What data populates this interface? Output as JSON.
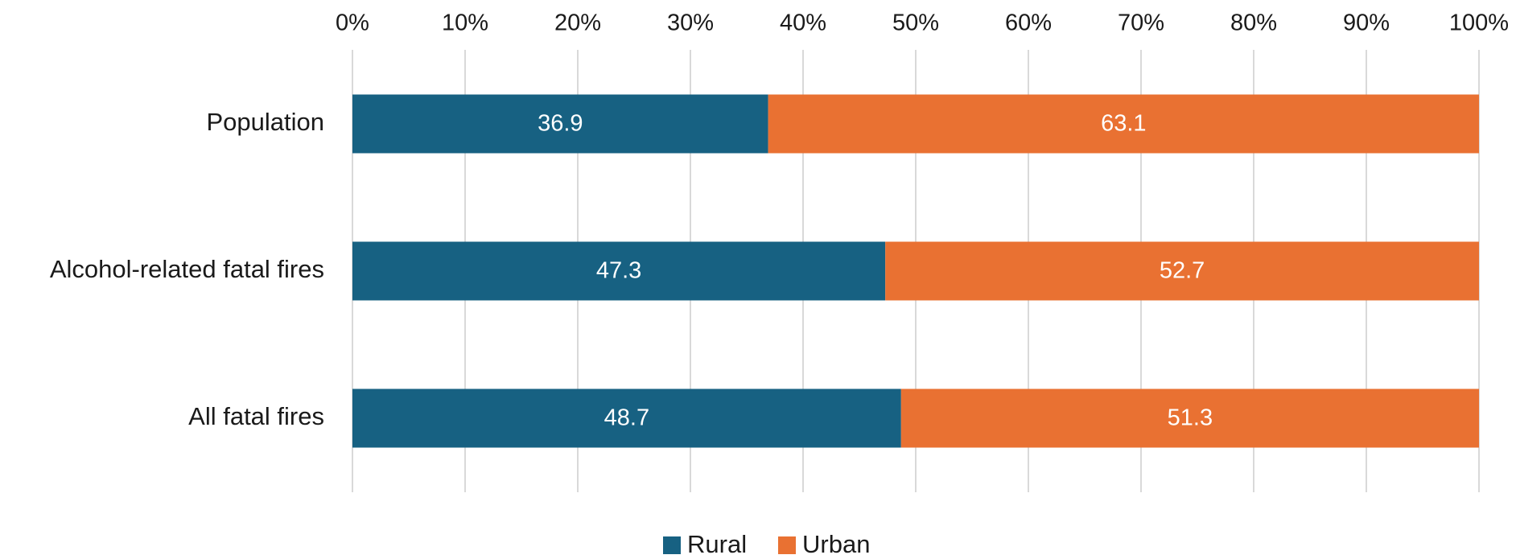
{
  "chart_data": {
    "type": "bar",
    "orientation": "horizontal",
    "stacked": true,
    "categories": [
      "Population",
      "Alcohol-related fatal fires",
      "All fatal fires"
    ],
    "series": [
      {
        "name": "Rural",
        "values": [
          36.9,
          47.3,
          48.7
        ],
        "color": "#176182"
      },
      {
        "name": "Urban",
        "values": [
          63.1,
          52.7,
          51.3
        ],
        "color": "#E97132"
      }
    ],
    "x_ticks": [
      "0%",
      "10%",
      "20%",
      "30%",
      "40%",
      "50%",
      "60%",
      "70%",
      "80%",
      "90%",
      "100%"
    ],
    "xlim": [
      0,
      100
    ],
    "x_axis_position": "top",
    "grid": true,
    "legend": "bottom",
    "title": "",
    "xlabel": "",
    "ylabel": ""
  }
}
